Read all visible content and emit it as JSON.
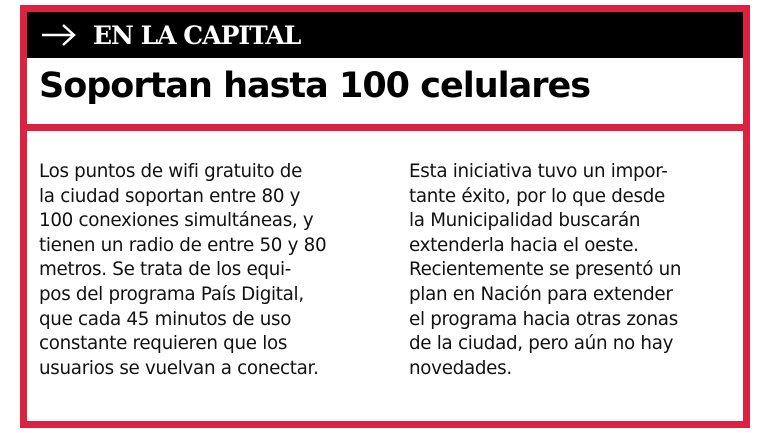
{
  "header": {
    "kicker": "EN LA CAPITAL",
    "arrow_icon": "arrow-right-icon",
    "title": "Soportan hasta 100 celulares"
  },
  "colors": {
    "accent": "#dc2240",
    "band": "#000000"
  },
  "body": {
    "left_lines": [
      "Los puntos de wifi gratuito de",
      "la ciudad soportan entre 80 y",
      "100 conexiones simultáneas, y",
      "tienen un radio de entre 50 y 80",
      "metros. Se trata de los equi-",
      "pos del programa País Digital,",
      "que cada 45 minutos de uso",
      "constante requieren que los",
      "usuarios se vuelvan a conectar."
    ],
    "right_lines": [
      "Esta iniciativa tuvo un impor-",
      "tante éxito, por lo que desde",
      "la Municipalidad buscarán",
      "extenderla hacia el oeste.",
      "Recientemente se presentó un",
      "plan en Nación para extender",
      "el programa hacia otras zonas",
      "de la ciudad, pero aún no hay",
      "novedades."
    ]
  }
}
